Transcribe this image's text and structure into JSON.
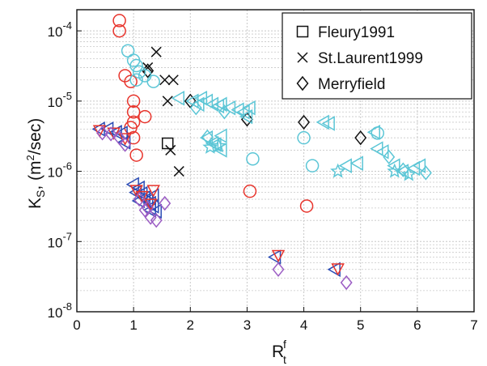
{
  "chart_data": {
    "type": "scatter",
    "title": "",
    "xlabel": {
      "main": "R",
      "sup": "f",
      "sub": "t"
    },
    "ylabel": {
      "main": "K",
      "sub": "S",
      "tail": ", (m",
      "sup": "2",
      "end": "/sec)"
    },
    "x_range": [
      0,
      7
    ],
    "y_range": [
      1e-08,
      0.0002
    ],
    "y_scale": "log",
    "grid": true,
    "x_ticks": [
      0,
      1,
      2,
      3,
      4,
      5,
      6,
      7
    ],
    "y_ticks": [
      {
        "value": 1e-08,
        "base": "10",
        "exp": "-8"
      },
      {
        "value": 1e-07,
        "base": "10",
        "exp": "-7"
      },
      {
        "value": 1e-06,
        "base": "10",
        "exp": "-6"
      },
      {
        "value": 1e-05,
        "base": "10",
        "exp": "-5"
      },
      {
        "value": 0.0001,
        "base": "10",
        "exp": "-4"
      }
    ],
    "legend_placement": "top-right",
    "legend": [
      {
        "label": "Fleury1991",
        "marker": "square"
      },
      {
        "label": "St.Laurent1999",
        "marker": "x"
      },
      {
        "label": "Merryfield",
        "marker": "diamond"
      }
    ],
    "colors": {
      "red": "#e8342c",
      "cyan": "#5cc6d6",
      "blue": "#2a4bb5",
      "purple": "#9b5cc4",
      "black": "#111111",
      "grid": "#c8c8c8"
    },
    "series": [
      {
        "marker": "square",
        "color": "black",
        "points": [
          [
            1.6,
            2.5e-06
          ]
        ]
      },
      {
        "marker": "x",
        "color": "black",
        "points": [
          [
            1.4,
            5e-05
          ],
          [
            1.25,
            3e-05
          ],
          [
            1.55,
            2e-05
          ],
          [
            1.7,
            2e-05
          ],
          [
            1.6,
            1e-05
          ],
          [
            1.65,
            2e-06
          ],
          [
            1.8,
            1e-06
          ]
        ]
      },
      {
        "marker": "diamond",
        "color": "black",
        "points": [
          [
            1.25,
            2.7e-05
          ],
          [
            2.0,
            1e-05
          ],
          [
            3.0,
            5.5e-06
          ],
          [
            4.0,
            5e-06
          ],
          [
            5.0,
            3e-06
          ]
        ]
      },
      {
        "marker": "circle",
        "color": "red",
        "points": [
          [
            0.75,
            0.00014
          ],
          [
            0.75,
            0.0001
          ],
          [
            0.85,
            2.3e-05
          ],
          [
            0.95,
            1.9e-05
          ],
          [
            1.0,
            1e-05
          ],
          [
            1.0,
            7e-06
          ],
          [
            1.0,
            5e-06
          ],
          [
            1.0,
            3e-06
          ],
          [
            1.05,
            1.7e-06
          ],
          [
            0.95,
            4.2e-06
          ],
          [
            1.2,
            6e-06
          ],
          [
            3.05,
            5.2e-07
          ],
          [
            4.05,
            3.2e-07
          ]
        ]
      },
      {
        "marker": "circle",
        "color": "cyan",
        "points": [
          [
            0.9,
            5.2e-05
          ],
          [
            1.0,
            3.8e-05
          ],
          [
            1.05,
            3.2e-05
          ],
          [
            1.1,
            2.6e-05
          ],
          [
            1.05,
            2e-05
          ],
          [
            1.2,
            2.3e-05
          ],
          [
            1.35,
            1.9e-05
          ],
          [
            3.1,
            1.5e-06
          ],
          [
            4.0,
            3e-06
          ],
          [
            4.15,
            1.2e-06
          ],
          [
            5.3,
            3.5e-06
          ]
        ]
      },
      {
        "marker": "triangle-left",
        "color": "cyan",
        "points": [
          [
            1.8,
            1.1e-05
          ],
          [
            2.05,
            1e-05
          ],
          [
            2.15,
            9e-06
          ],
          [
            2.2,
            1.1e-05
          ],
          [
            2.3,
            1e-05
          ],
          [
            2.4,
            9e-06
          ],
          [
            2.5,
            8.5e-06
          ],
          [
            2.55,
            9e-06
          ],
          [
            2.7,
            8e-06
          ],
          [
            2.85,
            7.5e-06
          ],
          [
            2.95,
            7e-06
          ],
          [
            3.05,
            8e-06
          ],
          [
            2.3,
            3e-06
          ],
          [
            2.4,
            2.5e-06
          ],
          [
            2.55,
            3.2e-06
          ],
          [
            2.45,
            2.4e-06
          ],
          [
            2.55,
            2e-06
          ],
          [
            3.0,
            6e-06
          ],
          [
            4.35,
            5e-06
          ],
          [
            4.45,
            4.8e-06
          ],
          [
            5.25,
            3.6e-06
          ],
          [
            5.3,
            2.1e-06
          ],
          [
            5.4,
            1.9e-06
          ],
          [
            5.6,
            1.2e-06
          ],
          [
            5.75,
            1e-06
          ],
          [
            5.95,
            1.1e-06
          ],
          [
            6.05,
            1.2e-06
          ],
          [
            4.95,
            1.3e-06
          ],
          [
            4.75,
            1.2e-06
          ]
        ]
      },
      {
        "marker": "star",
        "color": "cyan",
        "points": [
          [
            2.35,
            2.2e-06
          ],
          [
            2.5,
            2.3e-06
          ],
          [
            4.6,
            1e-06
          ],
          [
            5.6,
            1e-06
          ],
          [
            5.85,
            9e-07
          ]
        ]
      },
      {
        "marker": "diamond",
        "color": "cyan",
        "points": [
          [
            2.1,
            8e-06
          ],
          [
            2.6,
            7e-06
          ],
          [
            2.3,
            3.1e-06
          ],
          [
            5.5,
            1.6e-06
          ],
          [
            5.75,
            1.05e-06
          ],
          [
            6.15,
            9.5e-07
          ]
        ]
      },
      {
        "marker": "triangle-left",
        "color": "blue",
        "points": [
          [
            0.4,
            4e-06
          ],
          [
            0.55,
            4e-06
          ],
          [
            0.7,
            3.6e-06
          ],
          [
            0.8,
            3.5e-06
          ],
          [
            0.85,
            2.6e-06
          ],
          [
            1.0,
            6.5e-07
          ],
          [
            1.1,
            5.8e-07
          ],
          [
            1.15,
            4.8e-07
          ],
          [
            1.2,
            4.2e-07
          ],
          [
            1.25,
            3.8e-07
          ],
          [
            1.3,
            3.5e-07
          ],
          [
            1.35,
            4.5e-07
          ],
          [
            1.05,
            5e-07
          ],
          [
            1.1,
            3.8e-07
          ],
          [
            1.3,
            2.8e-07
          ],
          [
            1.35,
            3.2e-07
          ],
          [
            1.4,
            2.7e-07
          ],
          [
            3.5,
            6e-08
          ],
          [
            4.55,
            4e-08
          ]
        ]
      },
      {
        "marker": "triangle-down",
        "color": "red",
        "points": [
          [
            0.4,
            3.9e-06
          ],
          [
            0.65,
            3.6e-06
          ],
          [
            0.85,
            3e-06
          ],
          [
            1.05,
            5.5e-07
          ],
          [
            1.15,
            4.5e-07
          ],
          [
            1.3,
            3.5e-07
          ],
          [
            1.35,
            5.5e-07
          ],
          [
            3.55,
            6.5e-08
          ],
          [
            4.6,
            4.2e-08
          ]
        ]
      },
      {
        "marker": "diamond",
        "color": "purple",
        "points": [
          [
            0.45,
            3.5e-06
          ],
          [
            0.6,
            3.4e-06
          ],
          [
            0.75,
            3e-06
          ],
          [
            0.85,
            2.4e-06
          ],
          [
            1.1,
            4e-07
          ],
          [
            1.2,
            2.8e-07
          ],
          [
            1.3,
            2.2e-07
          ],
          [
            1.4,
            2e-07
          ],
          [
            1.55,
            3.5e-07
          ],
          [
            1.25,
            3e-07
          ],
          [
            3.55,
            4e-08
          ],
          [
            4.75,
            2.6e-08
          ]
        ]
      }
    ]
  }
}
